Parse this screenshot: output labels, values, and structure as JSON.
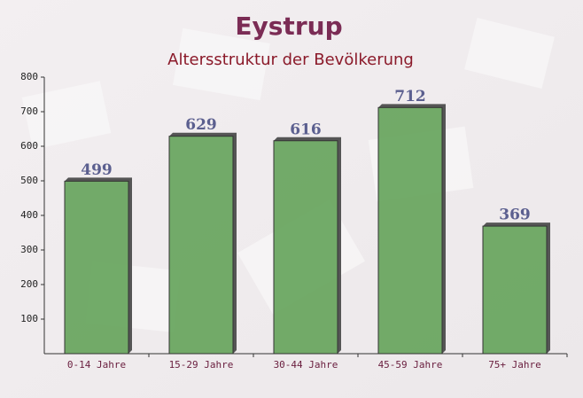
{
  "chart_data": {
    "type": "bar",
    "title": "Eystrup",
    "subtitle": "Altersstruktur der Bevölkerung",
    "categories": [
      "0-14 Jahre",
      "15-29 Jahre",
      "30-44 Jahre",
      "45-59 Jahre",
      "75+ Jahre"
    ],
    "values": [
      499,
      629,
      616,
      712,
      369
    ],
    "color": "#6aa661",
    "ylim": [
      0,
      800
    ],
    "yticks": [
      100,
      200,
      300,
      400,
      500,
      600,
      700,
      800
    ],
    "grid": false
  }
}
